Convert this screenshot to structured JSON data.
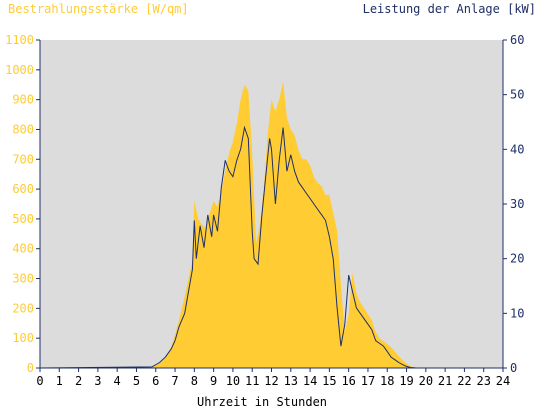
{
  "colors": {
    "background": "#ffffff",
    "plot_background": "#dcdcdc",
    "irradiance_fill": "#ffcc33",
    "irradiance_text": "#ffcc33",
    "power_line": "#1f2f66",
    "power_text": "#1f2f66",
    "axis": "#1f2f66",
    "text_dark": "#000000"
  },
  "chart_data": {
    "type": "area",
    "title": "",
    "xlabel": "Uhrzeit in Stunden",
    "ylabel_left": "Bestrahlungsstärke [W/qm]",
    "ylabel_right": "Leistung der Anlage [kW]",
    "xlim": [
      0,
      24
    ],
    "ylim_left": [
      0,
      1100
    ],
    "ylim_right": [
      0,
      60
    ],
    "grid": false,
    "x_ticks": [
      "0",
      "1",
      "2",
      "3",
      "4",
      "5",
      "6",
      "7",
      "8",
      "9",
      "10",
      "11",
      "12",
      "13",
      "14",
      "15",
      "16",
      "17",
      "18",
      "19",
      "20",
      "21",
      "22",
      "23",
      "24"
    ],
    "y_left_ticks": [
      "0",
      "100",
      "200",
      "300",
      "400",
      "500",
      "600",
      "700",
      "800",
      "900",
      "1000",
      "1100"
    ],
    "y_right_ticks": [
      "0",
      "10",
      "20",
      "30",
      "40",
      "50",
      "60"
    ],
    "series": [
      {
        "name": "Bestrahlungsstärke [W/qm]",
        "axis": "left",
        "type": "area",
        "x": [
          0,
          5.6,
          5.9,
          6.2,
          6.5,
          6.8,
          7.0,
          7.2,
          7.5,
          7.7,
          7.9,
          8.0,
          8.2,
          8.4,
          8.6,
          8.8,
          9.0,
          9.2,
          9.4,
          9.6,
          9.8,
          10.0,
          10.2,
          10.4,
          10.6,
          10.8,
          11.0,
          11.2,
          11.4,
          11.6,
          11.8,
          12.0,
          12.2,
          12.4,
          12.6,
          12.8,
          13.0,
          13.2,
          13.4,
          13.6,
          13.8,
          14.0,
          14.2,
          14.4,
          14.6,
          14.8,
          15.0,
          15.2,
          15.4,
          15.6,
          15.8,
          16.0,
          16.2,
          16.4,
          16.6,
          16.8,
          17.0,
          17.2,
          17.4,
          17.6,
          17.8,
          18.0,
          18.2,
          18.4,
          18.6,
          18.8,
          19.0,
          19.2,
          19.5,
          19.8,
          24
        ],
        "values": [
          0,
          0,
          5,
          15,
          35,
          70,
          110,
          160,
          240,
          300,
          360,
          560,
          500,
          480,
          470,
          520,
          560,
          540,
          590,
          660,
          720,
          760,
          820,
          900,
          950,
          930,
          720,
          420,
          480,
          600,
          780,
          900,
          860,
          900,
          960,
          840,
          800,
          780,
          730,
          700,
          700,
          680,
          640,
          620,
          610,
          580,
          580,
          520,
          460,
          280,
          120,
          180,
          320,
          250,
          220,
          200,
          180,
          160,
          120,
          100,
          90,
          80,
          70,
          55,
          40,
          25,
          15,
          6,
          2,
          0,
          0
        ]
      },
      {
        "name": "Leistung der Anlage [kW]",
        "axis": "right",
        "type": "line",
        "x": [
          0,
          5.8,
          6.2,
          6.5,
          6.8,
          7.0,
          7.2,
          7.5,
          7.7,
          7.9,
          8.0,
          8.1,
          8.3,
          8.5,
          8.7,
          8.9,
          9.0,
          9.2,
          9.4,
          9.6,
          9.8,
          10.0,
          10.2,
          10.4,
          10.6,
          10.8,
          11.0,
          11.1,
          11.3,
          11.5,
          11.7,
          11.9,
          12.0,
          12.2,
          12.4,
          12.6,
          12.8,
          13.0,
          13.2,
          13.4,
          13.6,
          13.8,
          14.0,
          14.2,
          14.4,
          14.6,
          14.8,
          15.0,
          15.2,
          15.4,
          15.6,
          15.8,
          16.0,
          16.2,
          16.4,
          16.6,
          16.8,
          17.0,
          17.2,
          17.4,
          17.6,
          17.8,
          18.0,
          18.2,
          18.4,
          18.6,
          18.8,
          19.0,
          19.2,
          19.5,
          24
        ],
        "values": [
          0,
          0.2,
          1.0,
          2.0,
          3.5,
          5.0,
          7.5,
          10.0,
          14.0,
          18.0,
          27.0,
          20.0,
          26.0,
          22.0,
          28.0,
          24.0,
          28.0,
          25.0,
          33.0,
          38.0,
          36.0,
          35.0,
          38.0,
          40.0,
          44.0,
          42.0,
          25.0,
          20.0,
          19.0,
          28.0,
          35.0,
          42.0,
          40.0,
          30.0,
          38.0,
          44.0,
          36.0,
          39.0,
          36.0,
          34.0,
          33.0,
          32.0,
          31.0,
          30.0,
          29.0,
          28.0,
          27.0,
          24.0,
          20.0,
          11.0,
          4.0,
          8.0,
          17.0,
          14.0,
          11.0,
          10.0,
          9.0,
          8.0,
          7.0,
          5.0,
          4.5,
          4.0,
          3.0,
          2.0,
          1.5,
          1.0,
          0.6,
          0.3,
          0.1,
          0,
          0
        ]
      }
    ]
  }
}
